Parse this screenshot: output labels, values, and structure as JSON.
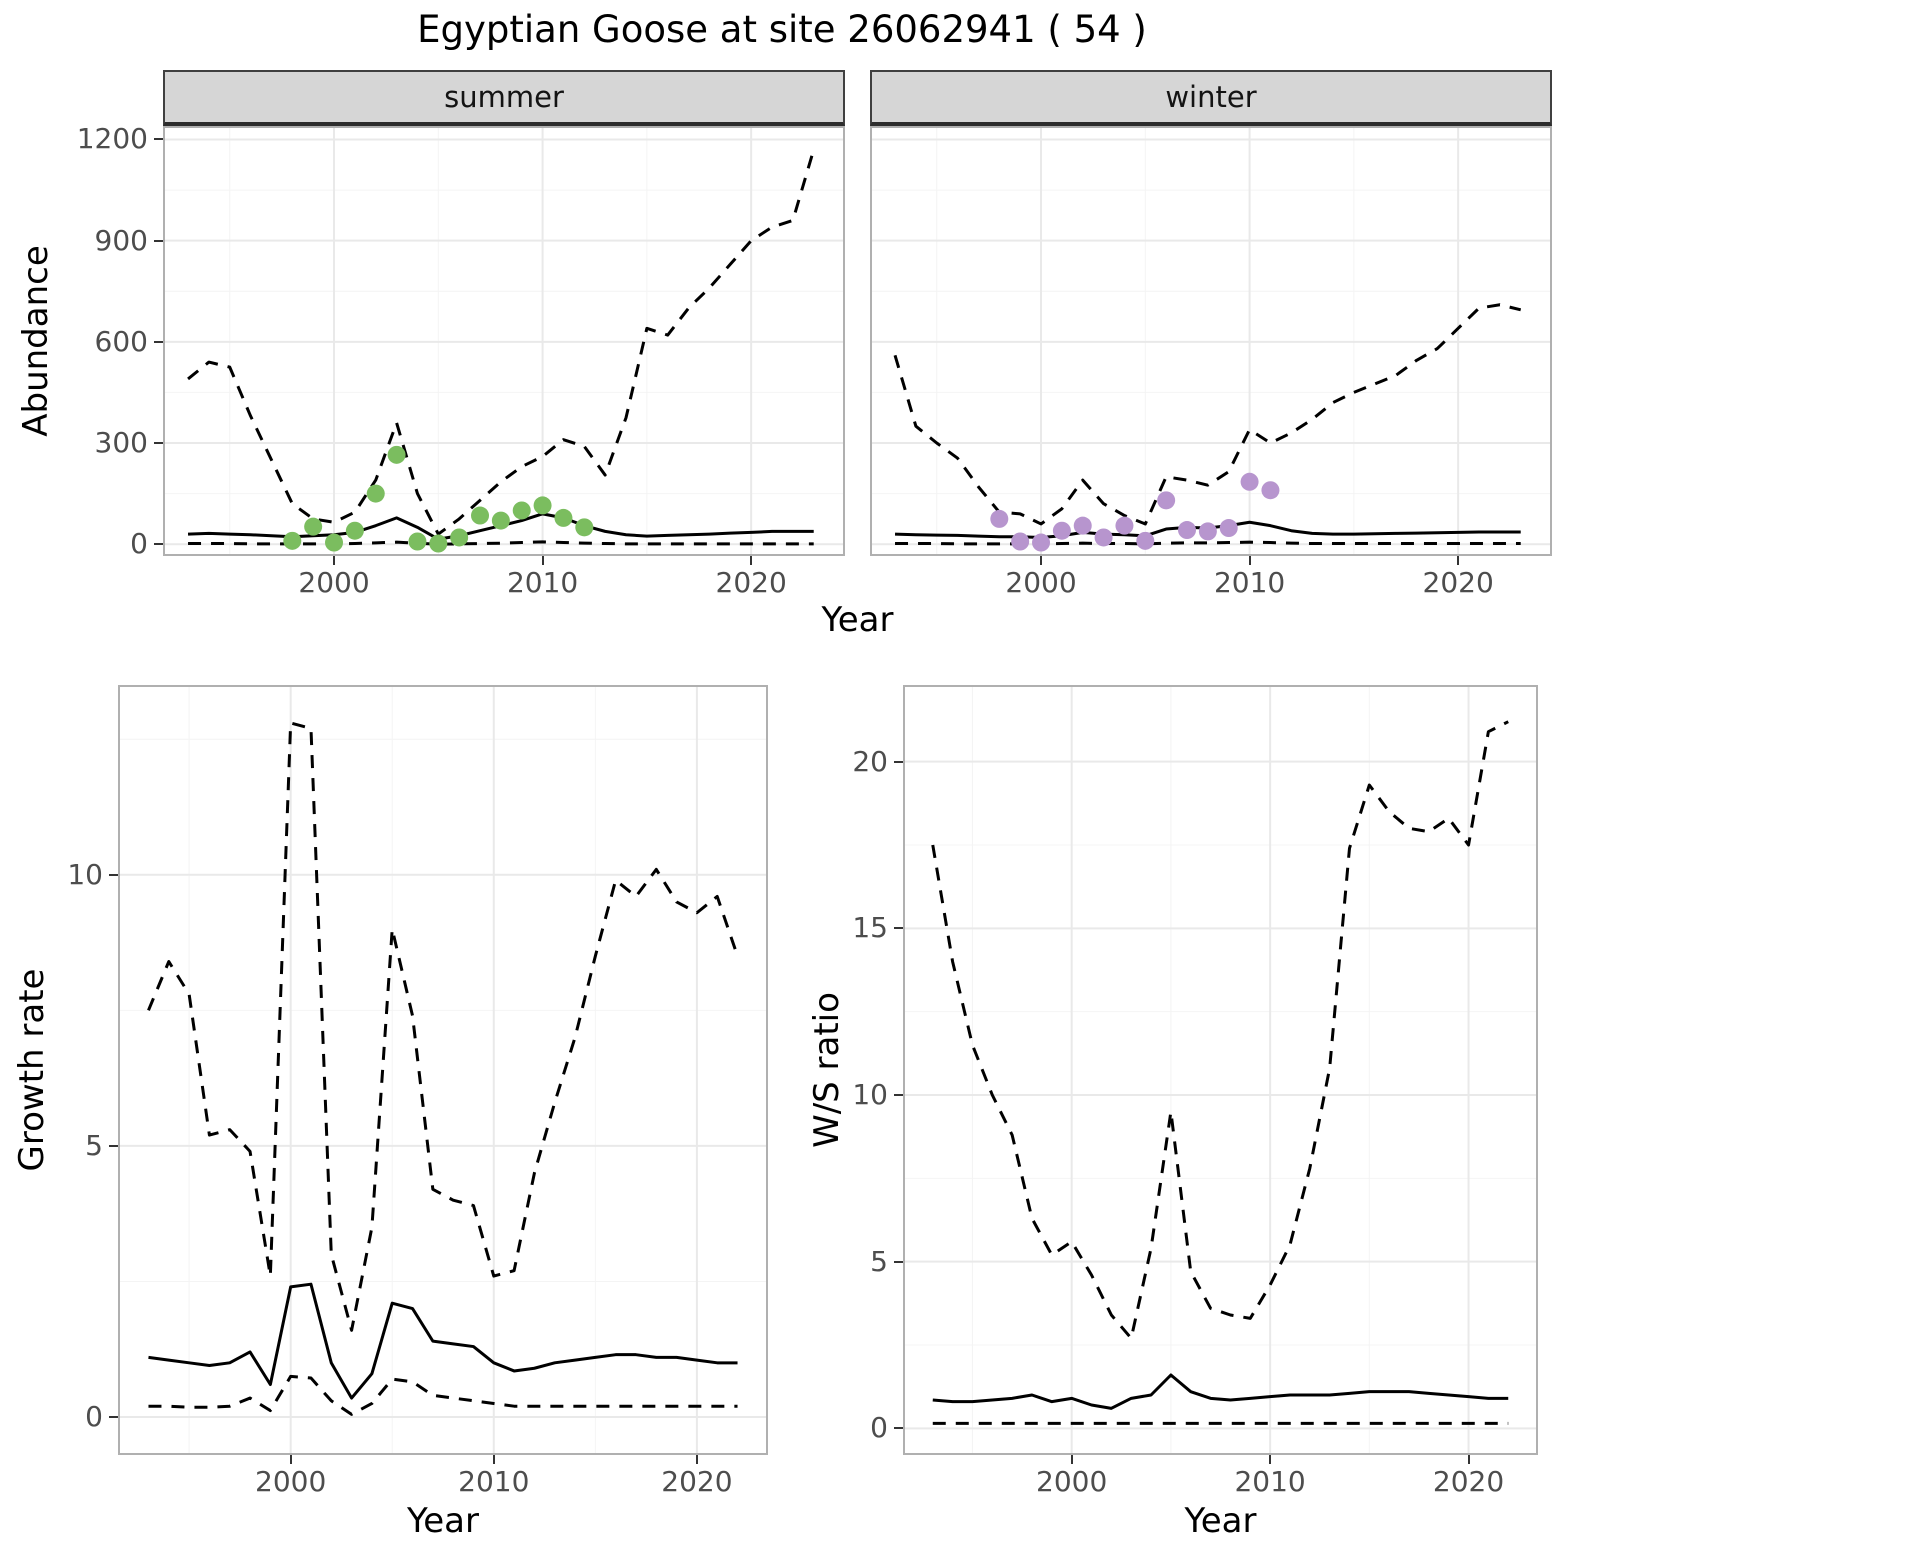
{
  "title": "Egyptian Goose at site 26062941 ( 54 )",
  "facets": {
    "summer": "summer",
    "winter": "winter"
  },
  "axes": {
    "abundance_y": "Abundance",
    "abundance_x": "Year",
    "growth_y": "Growth rate",
    "growth_x": "Year",
    "ws_y": "W/S ratio",
    "ws_x": "Year"
  },
  "colors": {
    "line": "#000000",
    "summer_points": "#7bbd5f",
    "winter_points": "#b795ce",
    "strip_bg": "#d6d6d6",
    "grid_major": "#e9e9e9",
    "grid_minor": "#f4f4f4",
    "panel_border": "#b0b0b0",
    "axis_text": "#4d4d4d"
  },
  "chart_data": [
    {
      "id": "abundance_summer",
      "type": "line",
      "title": "summer",
      "xlabel": "Year",
      "ylabel": "Abundance",
      "xlim": [
        1991.8,
        2024.5
      ],
      "ylim": [
        -35,
        1240
      ],
      "xticks": [
        2000,
        2010,
        2020
      ],
      "yticks": [
        0,
        300,
        600,
        900,
        1200
      ],
      "grid": true,
      "legend": "none",
      "x": [
        1993,
        1994,
        1995,
        1996,
        1997,
        1998,
        1999,
        2000,
        2001,
        2002,
        2003,
        2004,
        2005,
        2006,
        2007,
        2008,
        2009,
        2010,
        2011,
        2012,
        2013,
        2014,
        2015,
        2016,
        2017,
        2018,
        2019,
        2020,
        2021,
        2022,
        2023
      ],
      "series": [
        {
          "name": "upper_dashed",
          "style": "dashed",
          "values": [
            490,
            540,
            525,
            380,
            250,
            120,
            75,
            65,
            95,
            190,
            360,
            150,
            30,
            75,
            130,
            185,
            230,
            260,
            310,
            290,
            205,
            375,
            640,
            620,
            700,
            760,
            830,
            900,
            940,
            960,
            1170
          ]
        },
        {
          "name": "fit_solid",
          "style": "solid",
          "values": [
            30,
            32,
            30,
            28,
            25,
            22,
            25,
            28,
            35,
            55,
            78,
            50,
            15,
            25,
            40,
            55,
            70,
            90,
            78,
            55,
            38,
            28,
            24,
            26,
            28,
            30,
            33,
            35,
            38,
            38,
            38
          ]
        },
        {
          "name": "lower_dashed",
          "style": "dashed",
          "values": [
            2,
            2,
            2,
            1,
            1,
            1,
            1,
            1,
            2,
            4,
            6,
            3,
            0,
            1,
            2,
            3,
            5,
            7,
            5,
            3,
            2,
            1,
            1,
            1,
            1,
            1,
            1,
            1,
            1,
            1,
            1
          ]
        }
      ],
      "points": {
        "name": "observed_counts_summer",
        "color_key": "summer_points",
        "x": [
          1998,
          1999,
          2000,
          2001,
          2002,
          2003,
          2004,
          2005,
          2006,
          2007,
          2008,
          2009,
          2010,
          2011,
          2012
        ],
        "y": [
          10,
          52,
          5,
          40,
          150,
          265,
          8,
          2,
          20,
          85,
          70,
          100,
          115,
          78,
          50
        ]
      }
    },
    {
      "id": "abundance_winter",
      "type": "line",
      "title": "winter",
      "xlabel": "Year",
      "ylabel": "Abundance",
      "xlim": [
        1991.8,
        2024.5
      ],
      "ylim": [
        -35,
        1240
      ],
      "xticks": [
        2000,
        2010,
        2020
      ],
      "yticks": [
        0,
        300,
        600,
        900,
        1200
      ],
      "grid": true,
      "legend": "none",
      "x": [
        1993,
        1994,
        1995,
        1996,
        1997,
        1998,
        1999,
        2000,
        2001,
        2002,
        2003,
        2004,
        2005,
        2006,
        2007,
        2008,
        2009,
        2010,
        2011,
        2012,
        2013,
        2014,
        2015,
        2016,
        2017,
        2018,
        2019,
        2020,
        2021,
        2022,
        2023
      ],
      "series": [
        {
          "name": "upper_dashed",
          "style": "dashed",
          "values": [
            560,
            350,
            300,
            255,
            170,
            95,
            90,
            60,
            105,
            190,
            120,
            85,
            60,
            200,
            190,
            175,
            215,
            340,
            300,
            330,
            370,
            420,
            450,
            475,
            500,
            545,
            580,
            640,
            700,
            710,
            695
          ]
        },
        {
          "name": "fit_solid",
          "style": "solid",
          "values": [
            30,
            28,
            27,
            26,
            24,
            22,
            22,
            20,
            25,
            35,
            30,
            28,
            25,
            45,
            50,
            48,
            55,
            65,
            55,
            40,
            32,
            30,
            30,
            31,
            32,
            33,
            34,
            35,
            36,
            36,
            36
          ]
        },
        {
          "name": "lower_dashed",
          "style": "dashed",
          "values": [
            2,
            2,
            2,
            1,
            1,
            1,
            1,
            1,
            2,
            3,
            2,
            2,
            1,
            3,
            4,
            4,
            5,
            6,
            5,
            3,
            2,
            2,
            2,
            2,
            2,
            2,
            2,
            2,
            2,
            2,
            2
          ]
        }
      ],
      "points": {
        "name": "observed_counts_winter",
        "color_key": "winter_points",
        "x": [
          1998,
          1999,
          2000,
          2001,
          2002,
          2003,
          2004,
          2005,
          2006,
          2007,
          2008,
          2009,
          2010,
          2011
        ],
        "y": [
          75,
          8,
          5,
          40,
          55,
          20,
          55,
          10,
          130,
          42,
          38,
          48,
          185,
          160
        ]
      }
    },
    {
      "id": "growth_rate",
      "type": "line",
      "title": "",
      "xlabel": "Year",
      "ylabel": "Growth rate",
      "xlim": [
        1991.5,
        2023.5
      ],
      "ylim": [
        -0.7,
        13.5
      ],
      "xticks": [
        2000,
        2010,
        2020
      ],
      "yticks": [
        0,
        5,
        10
      ],
      "grid": true,
      "legend": "none",
      "x": [
        1993,
        1994,
        1995,
        1996,
        1997,
        1998,
        1999,
        2000,
        2001,
        2002,
        2003,
        2004,
        2005,
        2006,
        2007,
        2008,
        2009,
        2010,
        2011,
        2012,
        2013,
        2014,
        2015,
        2016,
        2017,
        2018,
        2019,
        2020,
        2021,
        2022
      ],
      "series": [
        {
          "name": "upper_dashed",
          "style": "dashed",
          "values": [
            7.5,
            8.4,
            7.8,
            5.2,
            5.3,
            4.9,
            2.6,
            12.8,
            12.7,
            3.0,
            1.6,
            3.5,
            9.0,
            7.4,
            4.2,
            4.0,
            3.9,
            2.6,
            2.7,
            4.5,
            5.8,
            7.0,
            8.5,
            9.9,
            9.6,
            10.1,
            9.5,
            9.3,
            9.6,
            8.5
          ]
        },
        {
          "name": "fit_solid",
          "style": "solid",
          "values": [
            1.1,
            1.05,
            1.0,
            0.95,
            1.0,
            1.2,
            0.6,
            2.4,
            2.45,
            1.0,
            0.35,
            0.8,
            2.1,
            2.0,
            1.4,
            1.35,
            1.3,
            1.0,
            0.85,
            0.9,
            1.0,
            1.05,
            1.1,
            1.15,
            1.15,
            1.1,
            1.1,
            1.05,
            1.0,
            1.0
          ]
        },
        {
          "name": "lower_dashed",
          "style": "dashed",
          "values": [
            0.2,
            0.2,
            0.18,
            0.18,
            0.2,
            0.35,
            0.12,
            0.75,
            0.72,
            0.3,
            0.05,
            0.25,
            0.7,
            0.65,
            0.4,
            0.35,
            0.3,
            0.25,
            0.2,
            0.2,
            0.2,
            0.2,
            0.2,
            0.2,
            0.2,
            0.2,
            0.2,
            0.2,
            0.2,
            0.2
          ]
        }
      ]
    },
    {
      "id": "ws_ratio",
      "type": "line",
      "title": "",
      "xlabel": "Year",
      "ylabel": "W/S ratio",
      "xlim": [
        1991.5,
        2023.5
      ],
      "ylim": [
        -0.8,
        22.3
      ],
      "xticks": [
        2000,
        2010,
        2020
      ],
      "yticks": [
        0,
        5,
        10,
        15,
        20
      ],
      "grid": true,
      "legend": "none",
      "x": [
        1993,
        1994,
        1995,
        1996,
        1997,
        1998,
        1999,
        2000,
        2001,
        2002,
        2003,
        2004,
        2005,
        2006,
        2007,
        2008,
        2009,
        2010,
        2011,
        2012,
        2013,
        2014,
        2015,
        2016,
        2017,
        2018,
        2019,
        2020,
        2021,
        2022
      ],
      "series": [
        {
          "name": "upper_dashed",
          "style": "dashed",
          "values": [
            17.5,
            14.0,
            11.5,
            10.0,
            8.8,
            6.3,
            5.2,
            5.6,
            4.6,
            3.4,
            2.7,
            5.4,
            9.5,
            4.7,
            3.6,
            3.4,
            3.3,
            4.3,
            5.5,
            7.8,
            10.8,
            17.4,
            19.3,
            18.5,
            18.0,
            17.9,
            18.3,
            17.5,
            20.9,
            21.2
          ]
        },
        {
          "name": "fit_solid",
          "style": "solid",
          "values": [
            0.85,
            0.8,
            0.8,
            0.85,
            0.9,
            1.0,
            0.8,
            0.9,
            0.7,
            0.6,
            0.9,
            1.0,
            1.6,
            1.1,
            0.9,
            0.85,
            0.9,
            0.95,
            1.0,
            1.0,
            1.0,
            1.05,
            1.1,
            1.1,
            1.1,
            1.05,
            1.0,
            0.95,
            0.9,
            0.9
          ]
        },
        {
          "name": "lower_dashed",
          "style": "dashed",
          "values": [
            0.15,
            0.15,
            0.15,
            0.15,
            0.15,
            0.15,
            0.15,
            0.15,
            0.15,
            0.15,
            0.15,
            0.15,
            0.15,
            0.15,
            0.15,
            0.15,
            0.15,
            0.15,
            0.15,
            0.15,
            0.15,
            0.15,
            0.15,
            0.15,
            0.15,
            0.15,
            0.15,
            0.15,
            0.15,
            0.15
          ]
        }
      ]
    }
  ]
}
